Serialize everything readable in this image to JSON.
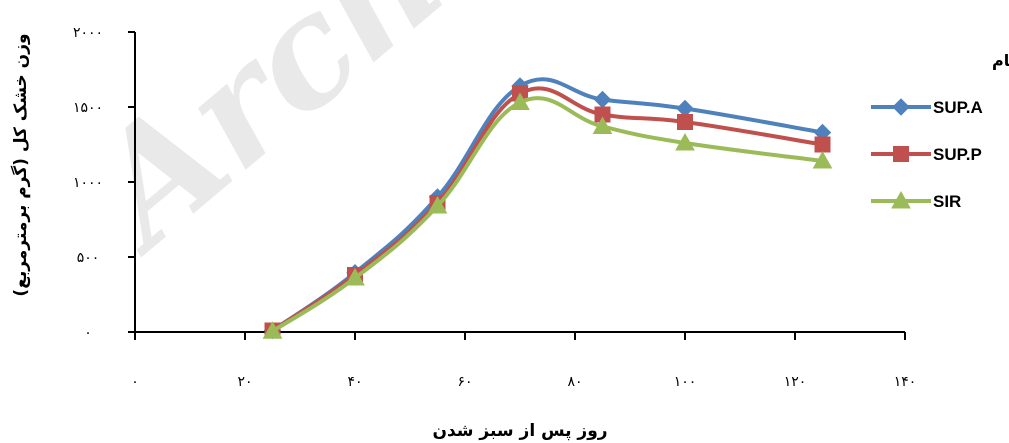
{
  "watermark": "Archive",
  "chart_data": {
    "type": "line",
    "xlabel": "روز پس از سبز شدن",
    "ylabel": "وزن خشک کل (گرم برمترمربع)",
    "xlim": [
      0,
      140
    ],
    "ylim": [
      0,
      2000
    ],
    "x_ticks": [
      "۰",
      "۲۰",
      "۴۰",
      "۶۰",
      "۸۰",
      "۱۰۰",
      "۱۲۰",
      "۱۴۰"
    ],
    "y_ticks": [
      "۰",
      "۵۰۰",
      "۱۰۰۰",
      "۱۵۰۰",
      "۲۰۰۰"
    ],
    "x": [
      25,
      40,
      55,
      70,
      85,
      100,
      125
    ],
    "legend_title": "ارقام",
    "legend_position": "right",
    "grid": false,
    "series": [
      {
        "name": "SUP.A",
        "color": "#4F81BD",
        "marker": "diamond",
        "values": [
          10,
          395,
          900,
          1640,
          1550,
          1490,
          1330
        ]
      },
      {
        "name": "SUP.P",
        "color": "#C0504D",
        "marker": "square",
        "values": [
          10,
          380,
          860,
          1590,
          1450,
          1400,
          1250
        ]
      },
      {
        "name": "SIR",
        "color": "#9BBB59",
        "marker": "triangle",
        "values": [
          5,
          360,
          840,
          1530,
          1370,
          1260,
          1140
        ]
      }
    ]
  }
}
